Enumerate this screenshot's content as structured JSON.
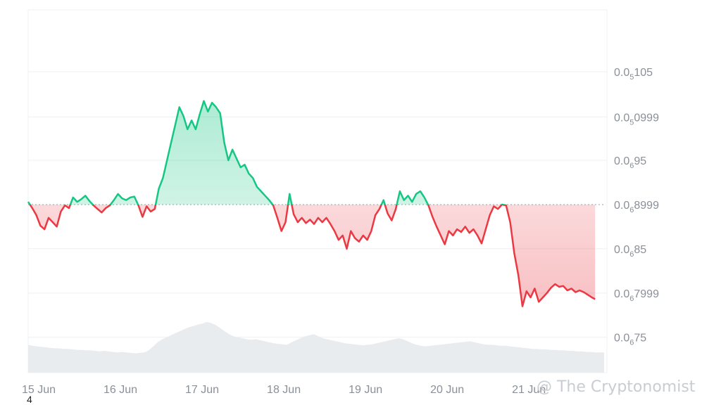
{
  "chart_data": {
    "type": "area",
    "baseline": 8.999e-07,
    "baseline_label": {
      "lead": "0.0",
      "sub": "6",
      "digits": "8999"
    },
    "y_ticks": [
      {
        "value": 1.05e-06,
        "lead": "0.0",
        "sub": "5",
        "digits": "105"
      },
      {
        "value": 9.99e-07,
        "lead": "0.0",
        "sub": "5",
        "digits": "0999"
      },
      {
        "value": 9.5e-07,
        "lead": "0.0",
        "sub": "6",
        "digits": "95"
      },
      {
        "value": 8.999e-07,
        "lead": "0.0",
        "sub": "6",
        "digits": "8999"
      },
      {
        "value": 8.5e-07,
        "lead": "0.0",
        "sub": "6",
        "digits": "85"
      },
      {
        "value": 7.999e-07,
        "lead": "0.0",
        "sub": "6",
        "digits": "7999"
      },
      {
        "value": 7.5e-07,
        "lead": "0.0",
        "sub": "6",
        "digits": "75"
      }
    ],
    "x_ticks": [
      {
        "day": 0,
        "label": "15 Jun"
      },
      {
        "day": 1,
        "label": "16 Jun"
      },
      {
        "day": 2,
        "label": "17 Jun"
      },
      {
        "day": 3,
        "label": "18 Jun"
      },
      {
        "day": 4,
        "label": "19 Jun"
      },
      {
        "day": 5,
        "label": "20 Jun"
      },
      {
        "day": 6,
        "label": "21 Jun"
      }
    ],
    "x_range": [
      0,
      7.05
    ],
    "y_range": [
      7.1e-07,
      1.12e-06
    ],
    "series": [
      {
        "values": [
          [
            0.0,
            9.03e-07
          ],
          [
            0.05,
            8.96e-07
          ],
          [
            0.1,
            8.88e-07
          ],
          [
            0.15,
            8.76e-07
          ],
          [
            0.2,
            8.72e-07
          ],
          [
            0.25,
            8.85e-07
          ],
          [
            0.3,
            8.8e-07
          ],
          [
            0.35,
            8.75e-07
          ],
          [
            0.4,
            8.92e-07
          ],
          [
            0.45,
            8.99e-07
          ],
          [
            0.5,
            8.96e-07
          ],
          [
            0.55,
            9.08e-07
          ],
          [
            0.6,
            9.03e-07
          ],
          [
            0.65,
            9.06e-07
          ],
          [
            0.7,
            9.1e-07
          ],
          [
            0.75,
            9.04e-07
          ],
          [
            0.8,
            8.99e-07
          ],
          [
            0.85,
            8.95e-07
          ],
          [
            0.9,
            8.91e-07
          ],
          [
            0.95,
            8.96e-07
          ],
          [
            1.0,
            8.99e-07
          ],
          [
            1.05,
            9.05e-07
          ],
          [
            1.1,
            9.12e-07
          ],
          [
            1.15,
            9.07e-07
          ],
          [
            1.2,
            9.05e-07
          ],
          [
            1.25,
            9.08e-07
          ],
          [
            1.3,
            9.09e-07
          ],
          [
            1.35,
            8.99e-07
          ],
          [
            1.4,
            8.86e-07
          ],
          [
            1.45,
            8.98e-07
          ],
          [
            1.5,
            8.92e-07
          ],
          [
            1.55,
            8.95e-07
          ],
          [
            1.6,
            9.18e-07
          ],
          [
            1.65,
            9.3e-07
          ],
          [
            1.7,
            9.5e-07
          ],
          [
            1.75,
            9.7e-07
          ],
          [
            1.8,
            9.9e-07
          ],
          [
            1.85,
            1.01e-06
          ],
          [
            1.9,
            1e-06
          ],
          [
            1.95,
            9.85e-07
          ],
          [
            2.0,
            9.95e-07
          ],
          [
            2.05,
            9.85e-07
          ],
          [
            2.1,
            1.002e-06
          ],
          [
            2.15,
            1.017e-06
          ],
          [
            2.2,
            1.005e-06
          ],
          [
            2.25,
            1.015e-06
          ],
          [
            2.3,
            1.01e-06
          ],
          [
            2.35,
            1.003e-06
          ],
          [
            2.4,
            9.7e-07
          ],
          [
            2.45,
            9.5e-07
          ],
          [
            2.5,
            9.62e-07
          ],
          [
            2.55,
            9.52e-07
          ],
          [
            2.6,
            9.42e-07
          ],
          [
            2.65,
            9.45e-07
          ],
          [
            2.7,
            9.35e-07
          ],
          [
            2.75,
            9.3e-07
          ],
          [
            2.8,
            9.2e-07
          ],
          [
            2.85,
            9.15e-07
          ],
          [
            2.9,
            9.1e-07
          ],
          [
            2.95,
            9.05e-07
          ],
          [
            3.0,
            8.99e-07
          ],
          [
            3.05,
            8.85e-07
          ],
          [
            3.1,
            8.7e-07
          ],
          [
            3.15,
            8.8e-07
          ],
          [
            3.2,
            9.12e-07
          ],
          [
            3.25,
            8.89e-07
          ],
          [
            3.3,
            8.8e-07
          ],
          [
            3.35,
            8.85e-07
          ],
          [
            3.4,
            8.79e-07
          ],
          [
            3.45,
            8.83e-07
          ],
          [
            3.5,
            8.78e-07
          ],
          [
            3.55,
            8.85e-07
          ],
          [
            3.6,
            8.8e-07
          ],
          [
            3.65,
            8.85e-07
          ],
          [
            3.7,
            8.78e-07
          ],
          [
            3.75,
            8.7e-07
          ],
          [
            3.8,
            8.6e-07
          ],
          [
            3.85,
            8.65e-07
          ],
          [
            3.9,
            8.5e-07
          ],
          [
            3.95,
            8.7e-07
          ],
          [
            4.0,
            8.62e-07
          ],
          [
            4.05,
            8.58e-07
          ],
          [
            4.1,
            8.65e-07
          ],
          [
            4.15,
            8.6e-07
          ],
          [
            4.2,
            8.7e-07
          ],
          [
            4.25,
            8.88e-07
          ],
          [
            4.3,
            8.95e-07
          ],
          [
            4.35,
            9.05e-07
          ],
          [
            4.4,
            8.9e-07
          ],
          [
            4.45,
            8.82e-07
          ],
          [
            4.5,
            8.95e-07
          ],
          [
            4.55,
            9.15e-07
          ],
          [
            4.6,
            9.05e-07
          ],
          [
            4.65,
            9.1e-07
          ],
          [
            4.7,
            9.03e-07
          ],
          [
            4.75,
            9.12e-07
          ],
          [
            4.8,
            9.15e-07
          ],
          [
            4.85,
            9.08e-07
          ],
          [
            4.9,
            8.99e-07
          ],
          [
            4.95,
            8.86e-07
          ],
          [
            5.0,
            8.75e-07
          ],
          [
            5.05,
            8.65e-07
          ],
          [
            5.1,
            8.55e-07
          ],
          [
            5.15,
            8.7e-07
          ],
          [
            5.2,
            8.65e-07
          ],
          [
            5.25,
            8.72e-07
          ],
          [
            5.3,
            8.69e-07
          ],
          [
            5.35,
            8.75e-07
          ],
          [
            5.4,
            8.68e-07
          ],
          [
            5.45,
            8.72e-07
          ],
          [
            5.5,
            8.65e-07
          ],
          [
            5.55,
            8.56e-07
          ],
          [
            5.6,
            8.72e-07
          ],
          [
            5.65,
            8.88e-07
          ],
          [
            5.7,
            8.98e-07
          ],
          [
            5.75,
            8.95e-07
          ],
          [
            5.8,
            9e-07
          ],
          [
            5.85,
            8.99e-07
          ],
          [
            5.9,
            8.8e-07
          ],
          [
            5.95,
            8.45e-07
          ],
          [
            6.0,
            8.2e-07
          ],
          [
            6.05,
            7.85e-07
          ],
          [
            6.1,
            8.02e-07
          ],
          [
            6.15,
            7.95e-07
          ],
          [
            6.2,
            8.05e-07
          ],
          [
            6.25,
            7.9e-07
          ],
          [
            6.3,
            7.95e-07
          ],
          [
            6.35,
            8e-07
          ],
          [
            6.4,
            8.06e-07
          ],
          [
            6.45,
            8.1e-07
          ],
          [
            6.5,
            8.07e-07
          ],
          [
            6.55,
            8.08e-07
          ],
          [
            6.6,
            8.03e-07
          ],
          [
            6.65,
            8.05e-07
          ],
          [
            6.7,
            8.01e-07
          ],
          [
            6.75,
            8.03e-07
          ],
          [
            6.8,
            8.01e-07
          ],
          [
            6.85,
            7.98e-07
          ],
          [
            6.9,
            7.95e-07
          ],
          [
            6.94,
            7.93e-07
          ]
        ]
      }
    ],
    "volume": [
      0.55,
      0.53,
      0.52,
      0.51,
      0.5,
      0.49,
      0.48,
      0.48,
      0.47,
      0.47,
      0.46,
      0.45,
      0.45,
      0.44,
      0.44,
      0.43,
      0.42,
      0.43,
      0.42,
      0.41,
      0.4,
      0.41,
      0.4,
      0.39,
      0.38,
      0.39,
      0.4,
      0.44,
      0.52,
      0.6,
      0.66,
      0.7,
      0.74,
      0.78,
      0.82,
      0.86,
      0.9,
      0.92,
      0.95,
      0.97,
      1.0,
      0.98,
      0.94,
      0.88,
      0.82,
      0.76,
      0.72,
      0.7,
      0.68,
      0.66,
      0.65,
      0.66,
      0.64,
      0.62,
      0.6,
      0.58,
      0.57,
      0.56,
      0.55,
      0.6,
      0.64,
      0.68,
      0.72,
      0.74,
      0.76,
      0.72,
      0.68,
      0.66,
      0.64,
      0.62,
      0.6,
      0.58,
      0.57,
      0.56,
      0.55,
      0.54,
      0.55,
      0.56,
      0.58,
      0.6,
      0.62,
      0.64,
      0.66,
      0.68,
      0.66,
      0.62,
      0.58,
      0.55,
      0.53,
      0.52,
      0.53,
      0.54,
      0.55,
      0.56,
      0.57,
      0.58,
      0.59,
      0.6,
      0.61,
      0.62,
      0.6,
      0.58,
      0.56,
      0.55,
      0.55,
      0.54,
      0.53,
      0.53,
      0.52,
      0.51,
      0.5,
      0.49,
      0.48,
      0.47,
      0.47,
      0.46,
      0.46,
      0.45,
      0.45,
      0.44,
      0.44,
      0.43,
      0.43,
      0.42,
      0.42,
      0.41,
      0.41,
      0.4,
      0.4,
      0.4
    ],
    "colors": {
      "up": "#16c784",
      "down": "#ea3943",
      "volume": "#e9ecef",
      "grid": "#eef0f3",
      "baseline": "#999ea6"
    }
  },
  "watermark": "@ The Cryptonomist",
  "corner_label": "4"
}
